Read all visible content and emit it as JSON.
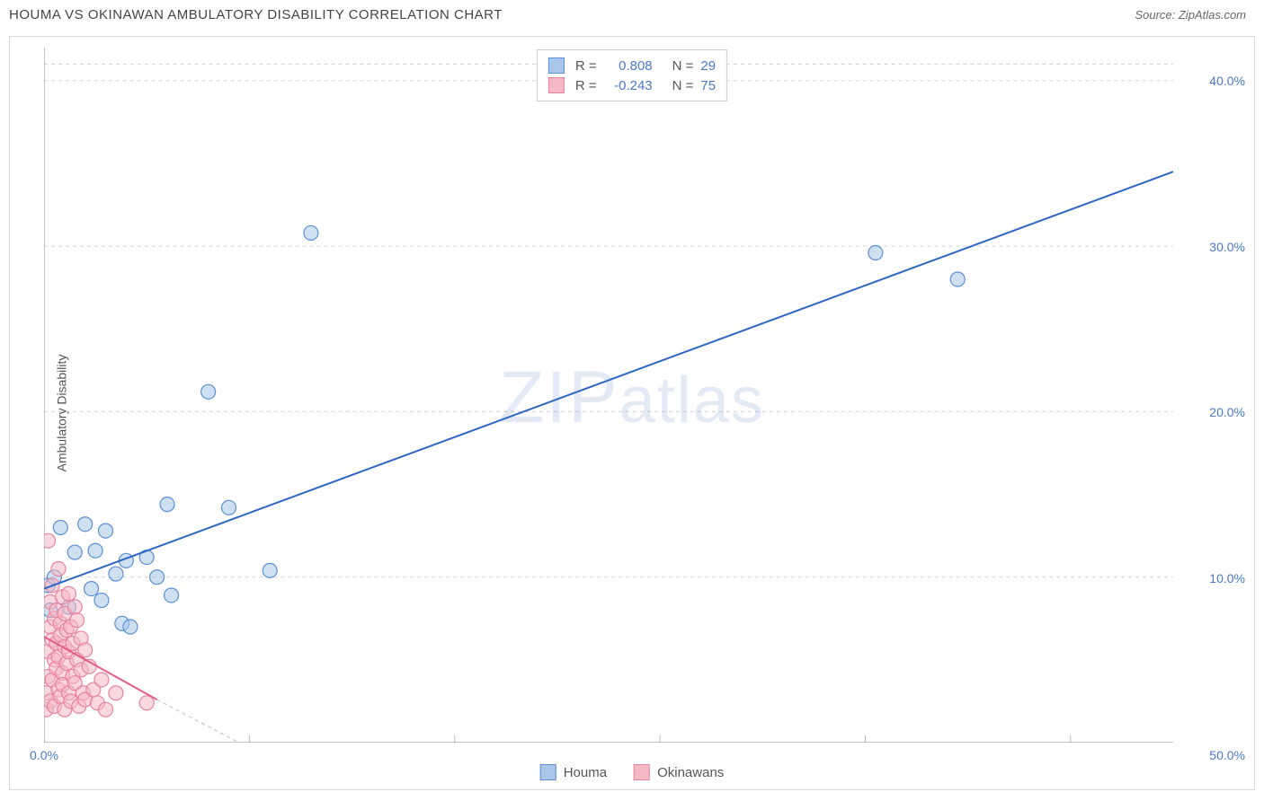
{
  "title": "HOUMA VS OKINAWAN AMBULATORY DISABILITY CORRELATION CHART",
  "source": "Source: ZipAtlas.com",
  "yaxis_label": "Ambulatory Disability",
  "watermark": "ZIPatlas",
  "chart": {
    "type": "scatter",
    "background_color": "#ffffff",
    "border_color": "#d8d8d8",
    "grid_color": "#d0d0d0",
    "grid_dash": "4,4",
    "axis_line_color": "#888888",
    "tick_color": "#bbbbbb",
    "xlim": [
      0,
      55
    ],
    "ylim": [
      0,
      42
    ],
    "x_ticks": [
      0,
      10,
      20,
      30,
      40,
      50
    ],
    "x_tick_labels_shown": {
      "0": "0.0%",
      "50": "50.0%"
    },
    "y_gridlines": [
      10,
      20,
      30,
      40
    ],
    "y_tick_labels": [
      "10.0%",
      "20.0%",
      "30.0%",
      "40.0%"
    ],
    "tick_label_color": "#4a7ac8",
    "tick_label_fontsize": 14,
    "marker_radius": 8,
    "marker_stroke_width": 1.2,
    "trend_line_width": 2,
    "series": [
      {
        "name": "Houma",
        "fill_color": "#a9c6ea",
        "fill_opacity": 0.55,
        "stroke_color": "#5a8fd6",
        "trend_color": "#2d66c4",
        "r": "0.808",
        "n": "29",
        "trend": {
          "x1": 0,
          "y1": 9.3,
          "x2": 55,
          "y2": 34.5
        },
        "points": [
          [
            0.2,
            9.5
          ],
          [
            0.5,
            10.0
          ],
          [
            0.3,
            8.0
          ],
          [
            0.8,
            13.0
          ],
          [
            1.2,
            8.2
          ],
          [
            1.5,
            11.5
          ],
          [
            2.0,
            13.2
          ],
          [
            2.3,
            9.3
          ],
          [
            2.5,
            11.6
          ],
          [
            2.8,
            8.6
          ],
          [
            3.0,
            12.8
          ],
          [
            3.5,
            10.2
          ],
          [
            3.8,
            7.2
          ],
          [
            4.0,
            11.0
          ],
          [
            4.2,
            7.0
          ],
          [
            5.0,
            11.2
          ],
          [
            5.5,
            10.0
          ],
          [
            6.0,
            14.4
          ],
          [
            6.2,
            8.9
          ],
          [
            8.0,
            21.2
          ],
          [
            9.0,
            14.2
          ],
          [
            11.0,
            10.4
          ],
          [
            13.0,
            30.8
          ],
          [
            40.5,
            29.6
          ],
          [
            44.5,
            28.0
          ]
        ]
      },
      {
        "name": "Okinawans",
        "fill_color": "#f6b8c5",
        "fill_opacity": 0.55,
        "stroke_color": "#e783a0",
        "trend_color": "#e45e85",
        "r": "-0.243",
        "n": "75",
        "trend": {
          "x1": 0,
          "y1": 6.4,
          "x2": 5.5,
          "y2": 2.6
        },
        "trend_dash_tail": {
          "x1": 5.5,
          "y1": 2.6,
          "x2": 9.5,
          "y2": 0
        },
        "points": [
          [
            0.1,
            2.0
          ],
          [
            0.1,
            3.0
          ],
          [
            0.2,
            12.2
          ],
          [
            0.2,
            4.0
          ],
          [
            0.2,
            5.5
          ],
          [
            0.3,
            7.0
          ],
          [
            0.3,
            8.5
          ],
          [
            0.3,
            2.5
          ],
          [
            0.4,
            6.2
          ],
          [
            0.4,
            3.8
          ],
          [
            0.4,
            9.5
          ],
          [
            0.5,
            5.0
          ],
          [
            0.5,
            7.5
          ],
          [
            0.5,
            2.2
          ],
          [
            0.6,
            4.5
          ],
          [
            0.6,
            8.0
          ],
          [
            0.6,
            6.0
          ],
          [
            0.7,
            3.2
          ],
          [
            0.7,
            10.5
          ],
          [
            0.7,
            5.2
          ],
          [
            0.8,
            7.2
          ],
          [
            0.8,
            2.8
          ],
          [
            0.8,
            6.5
          ],
          [
            0.9,
            4.2
          ],
          [
            0.9,
            8.8
          ],
          [
            0.9,
            3.5
          ],
          [
            1.0,
            5.8
          ],
          [
            1.0,
            7.8
          ],
          [
            1.0,
            2.0
          ],
          [
            1.1,
            6.8
          ],
          [
            1.1,
            4.8
          ],
          [
            1.2,
            9.0
          ],
          [
            1.2,
            3.0
          ],
          [
            1.2,
            5.5
          ],
          [
            1.3,
            7.0
          ],
          [
            1.3,
            2.5
          ],
          [
            1.4,
            6.0
          ],
          [
            1.4,
            4.0
          ],
          [
            1.5,
            8.2
          ],
          [
            1.5,
            3.6
          ],
          [
            1.6,
            5.0
          ],
          [
            1.6,
            7.4
          ],
          [
            1.7,
            2.2
          ],
          [
            1.8,
            6.3
          ],
          [
            1.8,
            4.4
          ],
          [
            1.9,
            3.0
          ],
          [
            2.0,
            5.6
          ],
          [
            2.0,
            2.6
          ],
          [
            2.2,
            4.6
          ],
          [
            2.4,
            3.2
          ],
          [
            2.6,
            2.4
          ],
          [
            2.8,
            3.8
          ],
          [
            3.0,
            2.0
          ],
          [
            3.5,
            3.0
          ],
          [
            5.0,
            2.4
          ]
        ]
      }
    ]
  },
  "legend_bottom": [
    {
      "label": "Houma",
      "fill": "#a9c6ea",
      "stroke": "#5a8fd6"
    },
    {
      "label": "Okinawans",
      "fill": "#f6b8c5",
      "stroke": "#e783a0"
    }
  ]
}
